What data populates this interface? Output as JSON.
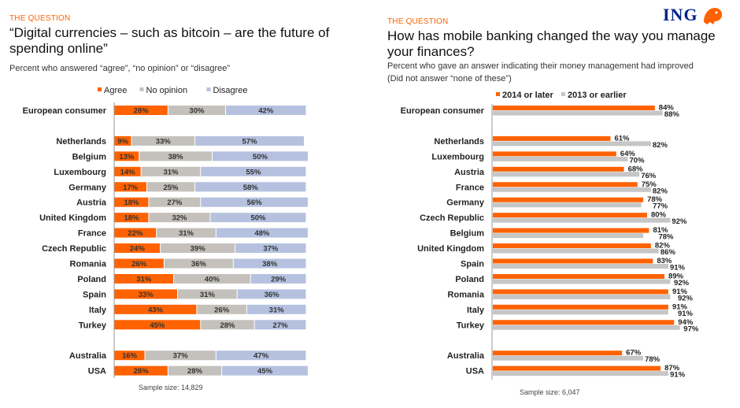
{
  "logo": {
    "text": "ING",
    "icon": "lion-icon"
  },
  "colors": {
    "orange": "#ff6200",
    "grey": "#c4c0bb",
    "blue": "#b5c1df",
    "grey_right": "#c6c6c6"
  },
  "left": {
    "kicker": "THE QUESTION",
    "title": "“Digital currencies – such as bitcoin – are the future of spending online”",
    "subtitle": "Percent who answered “agree”, “no opinion” or “disagree”",
    "sample": "Sample size: 14,829"
  },
  "right": {
    "kicker": "THE QUESTION",
    "title": "How has mobile banking changed the way you manage your finances?",
    "subtitle1": "Percent who gave an answer indicating their money management had improved",
    "subtitle2": "(Did not answer “none of these”)",
    "sample": "Sample size: 6,047"
  },
  "chart_data": [
    {
      "type": "bar",
      "orientation": "horizontal",
      "stacked": true,
      "legend_position": "top",
      "unit": "%",
      "xlim": [
        0,
        100
      ],
      "categories": [
        "European consumer",
        "Netherlands",
        "Belgium",
        "Luxembourg",
        "Germany",
        "Austria",
        "United Kingdom",
        "France",
        "Czech Republic",
        "Romania",
        "Poland",
        "Spain",
        "Italy",
        "Turkey",
        "Australia",
        "USA"
      ],
      "groups": [
        "aggregate",
        "europe",
        "europe",
        "europe",
        "europe",
        "europe",
        "europe",
        "europe",
        "europe",
        "europe",
        "europe",
        "europe",
        "europe",
        "europe",
        "other",
        "other"
      ],
      "series": [
        {
          "name": "Agree",
          "color": "#ff6200",
          "values": [
            28,
            9,
            13,
            14,
            17,
            18,
            18,
            22,
            24,
            26,
            31,
            33,
            43,
            45,
            16,
            28
          ]
        },
        {
          "name": "No opinion",
          "color": "#c4c0bb",
          "values": [
            30,
            33,
            38,
            31,
            25,
            27,
            32,
            31,
            39,
            36,
            40,
            31,
            26,
            28,
            37,
            28
          ]
        },
        {
          "name": "Disagree",
          "color": "#b5c1df",
          "values": [
            42,
            57,
            50,
            55,
            58,
            56,
            50,
            48,
            37,
            38,
            29,
            36,
            31,
            27,
            47,
            45
          ]
        }
      ]
    },
    {
      "type": "bar",
      "orientation": "horizontal",
      "stacked": false,
      "legend_position": "top",
      "unit": "%",
      "xlim": [
        0,
        100
      ],
      "categories": [
        "European consumer",
        "Netherlands",
        "Luxembourg",
        "Austria",
        "France",
        "Germany",
        "Czech Republic",
        "Belgium",
        "United Kingdom",
        "Spain",
        "Poland",
        "Romania",
        "Italy",
        "Turkey",
        "Australia",
        "USA"
      ],
      "groups": [
        "aggregate",
        "europe",
        "europe",
        "europe",
        "europe",
        "europe",
        "europe",
        "europe",
        "europe",
        "europe",
        "europe",
        "europe",
        "europe",
        "europe",
        "other",
        "other"
      ],
      "series": [
        {
          "name": "2014 or later",
          "color": "#ff6200",
          "values": [
            84,
            61,
            64,
            68,
            75,
            78,
            80,
            81,
            82,
            83,
            89,
            91,
            91,
            94,
            67,
            87
          ]
        },
        {
          "name": "2013 or earlier",
          "color": "#c6c6c6",
          "values": [
            88,
            82,
            70,
            76,
            82,
            77,
            92,
            78,
            86,
            91,
            92,
            92,
            91,
            97,
            78,
            91
          ]
        }
      ]
    }
  ]
}
